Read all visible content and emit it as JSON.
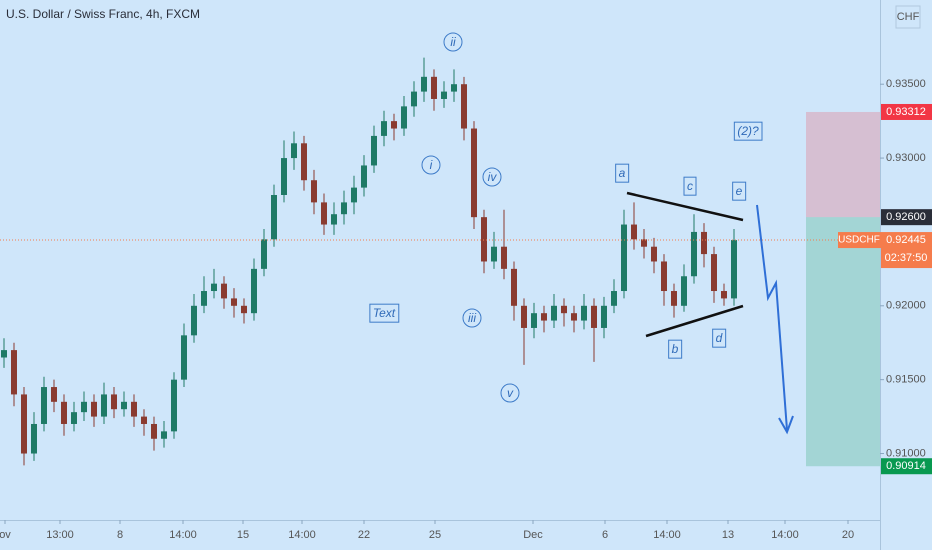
{
  "chart_data": {
    "type": "candlestick",
    "title": "U.S. Dollar / Swiss Franc, 4h, FXCM",
    "currency": "CHF",
    "symbol": "USDCHF",
    "countdown": "02:37:50",
    "up_color": "#1f7a66",
    "down_color": "#8a3b30",
    "open": [
      0.9165,
      0.917,
      0.914,
      0.91,
      0.912,
      0.9145,
      0.9135,
      0.912,
      0.9128,
      0.9135,
      0.9125,
      0.914,
      0.913,
      0.9135,
      0.9125,
      0.912,
      0.911,
      0.9115,
      0.915,
      0.918,
      0.92,
      0.921,
      0.9215,
      0.9205,
      0.92,
      0.9195,
      0.9225,
      0.9245,
      0.9275,
      0.93,
      0.931,
      0.9285,
      0.927,
      0.9255,
      0.9262,
      0.927,
      0.928,
      0.9295,
      0.9315,
      0.9325,
      0.932,
      0.9335,
      0.9345,
      0.9355,
      0.934,
      0.9345,
      0.935,
      0.932,
      0.926,
      0.923,
      0.924,
      0.9225,
      0.92,
      0.9185,
      0.9195,
      0.919,
      0.92,
      0.9195,
      0.919,
      0.92,
      0.9185,
      0.92,
      0.921,
      0.9255,
      0.9245,
      0.924,
      0.923,
      0.921,
      0.92,
      0.922,
      0.925,
      0.9235,
      0.921,
      0.9205
    ],
    "high": [
      0.9178,
      0.9175,
      0.9145,
      0.9128,
      0.9152,
      0.915,
      0.914,
      0.9135,
      0.9142,
      0.914,
      0.9148,
      0.9145,
      0.9142,
      0.914,
      0.913,
      0.9125,
      0.9122,
      0.9155,
      0.9188,
      0.9208,
      0.922,
      0.9225,
      0.922,
      0.9212,
      0.9205,
      0.9232,
      0.9252,
      0.9282,
      0.9312,
      0.9318,
      0.9315,
      0.9292,
      0.9276,
      0.927,
      0.9278,
      0.9288,
      0.9302,
      0.9322,
      0.9332,
      0.933,
      0.9342,
      0.9352,
      0.9368,
      0.936,
      0.9352,
      0.936,
      0.9355,
      0.9325,
      0.9265,
      0.925,
      0.9265,
      0.923,
      0.9205,
      0.9202,
      0.92,
      0.9208,
      0.9205,
      0.92,
      0.9208,
      0.9205,
      0.9206,
      0.9218,
      0.9265,
      0.927,
      0.9252,
      0.9246,
      0.9235,
      0.9215,
      0.9228,
      0.9262,
      0.9256,
      0.924,
      0.9215,
      0.9252
    ],
    "low": [
      0.9158,
      0.9132,
      0.9092,
      0.9095,
      0.9115,
      0.9128,
      0.9112,
      0.9115,
      0.9122,
      0.9118,
      0.912,
      0.9124,
      0.9125,
      0.9118,
      0.9112,
      0.9102,
      0.9104,
      0.911,
      0.9145,
      0.9175,
      0.9195,
      0.9205,
      0.9198,
      0.9192,
      0.9188,
      0.919,
      0.922,
      0.924,
      0.927,
      0.9292,
      0.9278,
      0.9262,
      0.9248,
      0.9248,
      0.9255,
      0.9262,
      0.9274,
      0.929,
      0.9308,
      0.9312,
      0.9315,
      0.9328,
      0.9338,
      0.9332,
      0.9334,
      0.9338,
      0.9312,
      0.9252,
      0.9222,
      0.9225,
      0.9218,
      0.919,
      0.916,
      0.9178,
      0.9182,
      0.9185,
      0.9186,
      0.9182,
      0.9184,
      0.9162,
      0.9178,
      0.9195,
      0.9205,
      0.9238,
      0.9232,
      0.9222,
      0.92,
      0.9192,
      0.9196,
      0.9215,
      0.9226,
      0.9202,
      0.92,
      0.92
    ],
    "close": [
      0.917,
      0.914,
      0.91,
      0.912,
      0.9145,
      0.9135,
      0.912,
      0.9128,
      0.9135,
      0.9125,
      0.914,
      0.913,
      0.9135,
      0.9125,
      0.912,
      0.911,
      0.9115,
      0.915,
      0.918,
      0.92,
      0.921,
      0.9215,
      0.9205,
      0.92,
      0.9195,
      0.9225,
      0.9245,
      0.9275,
      0.93,
      0.931,
      0.9285,
      0.927,
      0.9255,
      0.9262,
      0.927,
      0.928,
      0.9295,
      0.9315,
      0.9325,
      0.932,
      0.9335,
      0.9345,
      0.9355,
      0.934,
      0.9345,
      0.935,
      0.932,
      0.926,
      0.923,
      0.924,
      0.9225,
      0.92,
      0.9185,
      0.9195,
      0.919,
      0.92,
      0.9195,
      0.919,
      0.92,
      0.9185,
      0.92,
      0.921,
      0.9255,
      0.9245,
      0.924,
      0.923,
      0.921,
      0.92,
      0.922,
      0.925,
      0.9235,
      0.921,
      0.9205,
      0.92445
    ],
    "xlim": [
      -0.4,
      87.6
    ],
    "xticks": [
      {
        "value": 0.1,
        "label": "ov"
      },
      {
        "value": 5.6,
        "label": "13:00"
      },
      {
        "value": 11.6,
        "label": "8"
      },
      {
        "value": 17.9,
        "label": "14:00"
      },
      {
        "value": 23.9,
        "label": "15"
      },
      {
        "value": 29.8,
        "label": "14:00"
      },
      {
        "value": 36,
        "label": "22"
      },
      {
        "value": 43.1,
        "label": "25"
      },
      {
        "value": 52.9,
        "label": "Dec"
      },
      {
        "value": 60.1,
        "label": "6"
      },
      {
        "value": 66.3,
        "label": "14:00"
      },
      {
        "value": 72.4,
        "label": "13"
      },
      {
        "value": 78.1,
        "label": "14:00"
      },
      {
        "value": 84.4,
        "label": "20"
      }
    ],
    "ylim": [
      0.9055,
      0.9407
    ],
    "yticks": [
      {
        "value": 0.935,
        "label": "0.93500"
      },
      {
        "value": 0.93,
        "label": "0.93000"
      },
      {
        "value": 0.92,
        "label": "0.92000"
      },
      {
        "value": 0.915,
        "label": "0.91500"
      },
      {
        "value": 0.91,
        "label": "0.91000"
      }
    ],
    "price_labels": [
      {
        "value": 0.93312,
        "label": "0.93312",
        "color": "#f23645"
      },
      {
        "value": 0.926,
        "label": "0.92600",
        "color": "#2a2e39"
      },
      {
        "value": 0.92445,
        "label": "0.92445",
        "color": "#f57c4c"
      },
      {
        "value": 0.90914,
        "label": "0.90914",
        "color": "#089950"
      }
    ],
    "annotations": [
      "ii",
      "i",
      "iv",
      "iii",
      "v",
      "a",
      "c",
      "e",
      "b",
      "d",
      "Text",
      "(2)?"
    ]
  }
}
